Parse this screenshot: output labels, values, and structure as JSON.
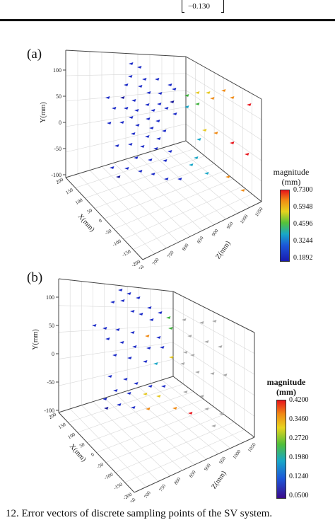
{
  "matrix_tail": {
    "value": "−0.130"
  },
  "panel_a": {
    "label": "(a)",
    "y_axis_label": "Y(mm)",
    "x_axis_label": "X(mm)",
    "z_axis_label": "Z(mm)",
    "y_ticks": [
      "100",
      "50",
      "0",
      "-50",
      "-100"
    ],
    "x_ticks": [
      "200",
      "150",
      "100",
      "50",
      "0",
      "-50",
      "-100",
      "-150",
      "-200"
    ],
    "z_ticks": [
      "650",
      "700",
      "750",
      "800",
      "850",
      "900",
      "950",
      "1000",
      "1050"
    ],
    "colorbar": {
      "title_line1": "magnitude",
      "title_line2": "(mm)",
      "ticks": [
        "0.7300",
        "0.5948",
        "0.4596",
        "0.3244",
        "0.1892"
      ]
    }
  },
  "panel_b": {
    "label": "(b)",
    "y_axis_label": "Y(mm)",
    "x_axis_label": "X(mm)",
    "z_axis_label": "Z(mm)",
    "y_ticks": [
      "100",
      "50",
      "0",
      "-50",
      "-100"
    ],
    "x_ticks": [
      "200",
      "150",
      "100",
      "50",
      "0",
      "-50",
      "-100",
      "-150",
      "-200"
    ],
    "z_ticks": [
      "650",
      "700",
      "750",
      "800",
      "850",
      "900",
      "950",
      "1000",
      "1050"
    ],
    "colorbar": {
      "title_line1": "magnitude",
      "title_line2": "(mm)",
      "ticks": [
        "0.4200",
        "0.3460",
        "0.2720",
        "0.1980",
        "0.1240",
        "0.0500"
      ]
    }
  },
  "caption": "12.    Error vectors of discrete sampling points of the SV system."
}
